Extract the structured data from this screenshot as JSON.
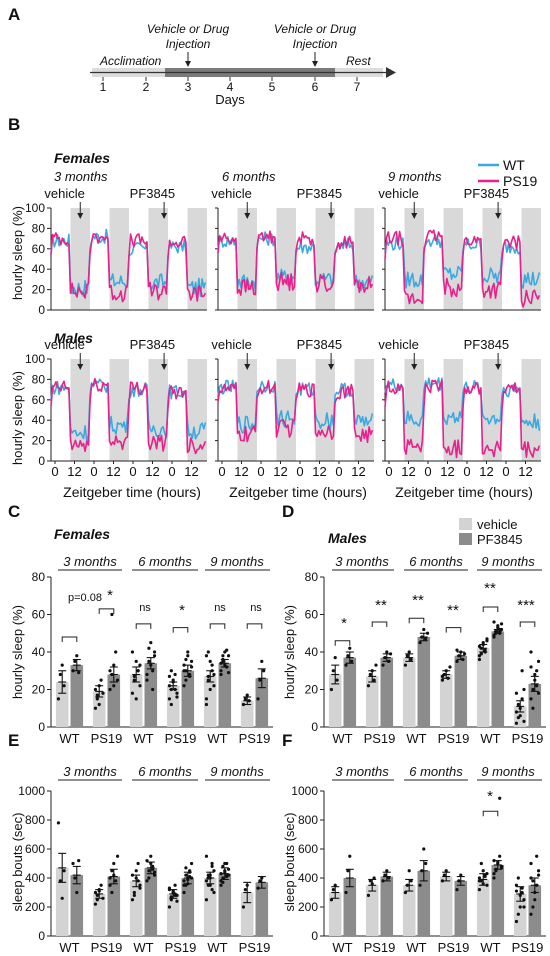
{
  "colors": {
    "wt": "#3aa9e0",
    "ps19": "#e8218c",
    "vehicle": "#d3d3d3",
    "pf3845": "#8c8c8c",
    "night": "#d9d9d9",
    "timeline": "#7a7a7a"
  },
  "panel_letters": [
    "A",
    "B",
    "C",
    "D",
    "E",
    "F"
  ],
  "panel_a": {
    "stages": [
      "Acclimation",
      "Rest"
    ],
    "injection_labels": [
      "Vehicle or Drug",
      "Injection",
      "Vehicle or Drug",
      "Injection"
    ],
    "day_ticks": [
      "1",
      "2",
      "3",
      "4",
      "5",
      "6",
      "7"
    ],
    "xlabel": "Days"
  },
  "panel_b": {
    "group_labels": [
      "Females",
      "Males"
    ],
    "age_labels": [
      "3 months",
      "6 months",
      "9 months"
    ],
    "treatment_labels": [
      "vehicle",
      "PF3845"
    ],
    "ylabel": "hourly sleep (%)",
    "xlabel": "Zeitgeber time (hours)",
    "legend": [
      "WT",
      "PS19"
    ],
    "x_ticks": [
      "0",
      "12",
      "0",
      "12",
      "0",
      "12",
      "0",
      "12"
    ]
  },
  "panel_c": {
    "title": "Females",
    "ages": [
      "3 months",
      "6 months",
      "9 months"
    ],
    "genotypes": [
      "WT",
      "PS19",
      "WT",
      "PS19",
      "WT",
      "PS19"
    ],
    "ylabel": "hourly sleep (%)",
    "sig": [
      "p=0.08",
      "*",
      "ns",
      "*",
      "ns",
      "ns"
    ]
  },
  "panel_d": {
    "title": "Males",
    "ages": [
      "3 months",
      "6 months",
      "9 months"
    ],
    "genotypes": [
      "WT",
      "PS19",
      "WT",
      "PS19",
      "WT",
      "PS19"
    ],
    "ylabel": "hourly sleep (%)",
    "sig": [
      "*",
      "**",
      "**",
      "**",
      "**",
      "***"
    ],
    "legend": [
      "vehicle",
      "PF3845"
    ]
  },
  "panel_e": {
    "ages": [
      "3 months",
      "6 months",
      "9 months"
    ],
    "genotypes": [
      "WT",
      "PS19",
      "WT",
      "PS19",
      "WT",
      "PS19"
    ],
    "ylabel": "sleep bouts (sec)"
  },
  "panel_f": {
    "ages": [
      "3 months",
      "6 months",
      "9 months"
    ],
    "genotypes": [
      "WT",
      "PS19",
      "WT",
      "PS19",
      "WT",
      "PS19"
    ],
    "ylabel": "sleep bouts (sec)",
    "sig": [
      "*"
    ]
  },
  "chart_data": [
    {
      "type": "line",
      "panel": "B",
      "group": "Females",
      "age": "3 months",
      "xlabel": "Zeitgeber time (hours)",
      "ylabel": "hourly sleep (%)",
      "ylim": [
        0,
        100
      ],
      "series": [
        {
          "name": "WT",
          "light_values": [
            68,
            72,
            60,
            62
          ],
          "dark_values": [
            22,
            28,
            27,
            22
          ]
        },
        {
          "name": "PS19",
          "light_values": [
            70,
            72,
            68,
            66
          ],
          "dark_values": [
            18,
            17,
            18,
            16
          ]
        }
      ]
    },
    {
      "type": "line",
      "panel": "B",
      "group": "Females",
      "age": "6 months",
      "xlabel": "Zeitgeber time (hours)",
      "ylabel": "hourly sleep (%)",
      "ylim": [
        0,
        100
      ],
      "series": [
        {
          "name": "WT",
          "light_values": [
            68,
            70,
            62,
            64
          ],
          "dark_values": [
            28,
            32,
            30,
            28
          ]
        },
        {
          "name": "PS19",
          "light_values": [
            70,
            72,
            70,
            66
          ],
          "dark_values": [
            22,
            28,
            26,
            24
          ]
        }
      ]
    },
    {
      "type": "line",
      "panel": "B",
      "group": "Females",
      "age": "9 months",
      "xlabel": "Zeitgeber time (hours)",
      "ylabel": "hourly sleep (%)",
      "ylim": [
        0,
        100
      ],
      "series": [
        {
          "name": "WT",
          "light_values": [
            65,
            68,
            64,
            62
          ],
          "dark_values": [
            30,
            35,
            33,
            30
          ]
        },
        {
          "name": "PS19",
          "light_values": [
            70,
            72,
            68,
            66
          ],
          "dark_values": [
            10,
            22,
            20,
            12
          ]
        }
      ]
    },
    {
      "type": "line",
      "panel": "B",
      "group": "Males",
      "age": "3 months",
      "xlabel": "Zeitgeber time (hours)",
      "ylabel": "hourly sleep (%)",
      "ylim": [
        0,
        100
      ],
      "series": [
        {
          "name": "WT",
          "light_values": [
            72,
            74,
            70,
            68
          ],
          "dark_values": [
            28,
            35,
            32,
            30
          ]
        },
        {
          "name": "PS19",
          "light_values": [
            72,
            74,
            72,
            68
          ],
          "dark_values": [
            16,
            20,
            18,
            16
          ]
        }
      ]
    },
    {
      "type": "line",
      "panel": "B",
      "group": "Males",
      "age": "6 months",
      "xlabel": "Zeitgeber time (hours)",
      "ylabel": "hourly sleep (%)",
      "ylim": [
        0,
        100
      ],
      "series": [
        {
          "name": "WT",
          "light_values": [
            72,
            74,
            70,
            70
          ],
          "dark_values": [
            36,
            42,
            40,
            38
          ]
        },
        {
          "name": "PS19",
          "light_values": [
            70,
            72,
            70,
            68
          ],
          "dark_values": [
            26,
            32,
            30,
            26
          ]
        }
      ]
    },
    {
      "type": "line",
      "panel": "B",
      "group": "Males",
      "age": "9 months",
      "xlabel": "Zeitgeber time (hours)",
      "ylabel": "hourly sleep (%)",
      "ylim": [
        0,
        100
      ],
      "series": [
        {
          "name": "WT",
          "light_values": [
            74,
            76,
            72,
            70
          ],
          "dark_values": [
            40,
            44,
            42,
            38
          ]
        },
        {
          "name": "PS19",
          "light_values": [
            72,
            74,
            72,
            70
          ],
          "dark_values": [
            14,
            12,
            12,
            10
          ]
        }
      ]
    },
    {
      "type": "bar",
      "panel": "C",
      "title": "Females",
      "ylabel": "hourly sleep (%)",
      "ylim": [
        0,
        80
      ],
      "categories": [
        "WT",
        "PS19",
        "WT",
        "PS19",
        "WT",
        "PS19"
      ],
      "series": [
        {
          "name": "vehicle",
          "values": [
            24,
            19,
            28,
            22,
            27,
            14
          ],
          "sem": [
            6,
            3,
            4,
            2,
            3,
            2
          ],
          "points": [
            [
              15,
              28,
              33,
              22
            ],
            [
              10,
              15,
              22,
              25,
              18,
              20,
              17,
              12
            ],
            [
              18,
              25,
              35,
              30,
              22,
              40,
              27,
              15,
              30,
              33
            ],
            [
              15,
              20,
              25,
              28,
              18,
              22,
              30,
              24,
              20,
              16,
              27,
              12
            ],
            [
              15,
              25,
              35,
              30,
              22,
              38,
              27,
              20,
              33,
              28,
              12,
              40
            ],
            [
              12,
              15,
              17,
              14
            ]
          ]
        },
        {
          "name": "PF3845",
          "values": [
            33,
            28,
            34,
            30,
            34,
            26
          ],
          "sem": [
            3,
            4,
            3,
            3,
            2,
            5
          ],
          "points": [
            [
              30,
              35,
              38,
              29
            ],
            [
              20,
              28,
              33,
              40,
              25,
              30,
              60,
              22
            ],
            [
              25,
              35,
              45,
              30,
              38,
              28,
              42,
              33,
              20,
              40
            ],
            [
              22,
              30,
              38,
              27,
              35,
              33,
              25,
              40,
              28,
              32,
              30,
              36
            ],
            [
              28,
              35,
              40,
              32,
              38,
              30,
              36,
              33,
              41,
              29,
              34,
              38
            ],
            [
              15,
              25,
              35,
              30
            ]
          ]
        }
      ]
    },
    {
      "type": "bar",
      "panel": "D",
      "title": "Males",
      "ylabel": "hourly sleep (%)",
      "ylim": [
        0,
        80
      ],
      "categories": [
        "WT",
        "PS19",
        "WT",
        "PS19",
        "WT",
        "PS19"
      ],
      "series": [
        {
          "name": "vehicle",
          "values": [
            28,
            27,
            37,
            28,
            42,
            11
          ],
          "sem": [
            5,
            3,
            2,
            2,
            2,
            3
          ],
          "points": [
            [
              20,
              30,
              37,
              25
            ],
            [
              22,
              28,
              30,
              25,
              33
            ],
            [
              33,
              38,
              40,
              36
            ],
            [
              25,
              28,
              30,
              26,
              32,
              27
            ],
            [
              38,
              42,
              45,
              40,
              47,
              43,
              39,
              44,
              41,
              46,
              36
            ],
            [
              2,
              5,
              10,
              15,
              20,
              8,
              12,
              6,
              30,
              3,
              18
            ]
          ]
        },
        {
          "name": "PF3845",
          "values": [
            37,
            37,
            48,
            38,
            51,
            23
          ],
          "sem": [
            3,
            2,
            2,
            2,
            1,
            4
          ],
          "points": [
            [
              33,
              38,
              42,
              35
            ],
            [
              33,
              37,
              40,
              35,
              39
            ],
            [
              45,
              48,
              52,
              47,
              50
            ],
            [
              35,
              38,
              40,
              36,
              39,
              41
            ],
            [
              48,
              50,
              53,
              52,
              55,
              49,
              51,
              54,
              50,
              52,
              56
            ],
            [
              15,
              20,
              25,
              30,
              35,
              40,
              10,
              28,
              22,
              18,
              32
            ]
          ]
        }
      ]
    },
    {
      "type": "bar",
      "panel": "E",
      "ylabel": "sleep bouts (sec)",
      "ylim": [
        0,
        1000
      ],
      "categories": [
        "WT",
        "PS19",
        "WT",
        "PS19",
        "WT",
        "PS19"
      ],
      "series": [
        {
          "name": "vehicle",
          "values": [
            470,
            290,
            380,
            290,
            400,
            300
          ],
          "sem": [
            100,
            30,
            40,
            30,
            40,
            70
          ],
          "points": [
            [
              780,
              380,
              260,
              450
            ],
            [
              220,
              280,
              320,
              350,
              260,
              300,
              250,
              310
            ],
            [
              250,
              300,
              400,
              500,
              350,
              420,
              280,
              450,
              380,
              330
            ],
            [
              200,
              250,
              300,
              350,
              280,
              320,
              260,
              310,
              290,
              240,
              330,
              270,
              300,
              280
            ],
            [
              250,
              350,
              400,
              500,
              450,
              380,
              420,
              350,
              480,
              300,
              550,
              400,
              420,
              320
            ],
            [
              200,
              320,
              350
            ]
          ]
        },
        {
          "name": "PF3845",
          "values": [
            420,
            410,
            470,
            400,
            430,
            370
          ],
          "sem": [
            60,
            50,
            40,
            40,
            40,
            40
          ],
          "points": [
            [
              500,
              400,
              300,
              520
            ],
            [
              350,
              450,
              500,
              380,
              550,
              400,
              300,
              420
            ],
            [
              380,
              450,
              500,
              480,
              420,
              520,
              400,
              550,
              460,
              440
            ],
            [
              300,
              350,
              400,
              450,
              500,
              380,
              420,
              360,
              440,
              400,
              350,
              470,
              390,
              410
            ],
            [
              350,
              400,
              450,
              500,
              420,
              380,
              480,
              440,
              410,
              460,
              430,
              370,
              500,
              420
            ],
            [
              330,
              380,
              400
            ]
          ]
        }
      ]
    },
    {
      "type": "bar",
      "panel": "F",
      "ylabel": "sleep bouts (sec)",
      "ylim": [
        0,
        1000
      ],
      "categories": [
        "WT",
        "PS19",
        "WT",
        "PS19",
        "WT",
        "PS19"
      ],
      "series": [
        {
          "name": "vehicle",
          "values": [
            300,
            350,
            350,
            410,
            390,
            290
          ],
          "sem": [
            40,
            40,
            40,
            30,
            40,
            50
          ],
          "points": [
            [
              250,
              320,
              350
            ],
            [
              280,
              380,
              360,
              400
            ],
            [
              300,
              350,
              450,
              380
            ],
            [
              380,
              420,
              450
            ],
            [
              320,
              380,
              450,
              420,
              350,
              400,
              500,
              360,
              410,
              430,
              380
            ],
            [
              100,
              150,
              200,
              300,
              250,
              350,
              400,
              280,
              330,
              200,
              310
            ]
          ]
        },
        {
          "name": "PF3845",
          "values": [
            400,
            410,
            450,
            380,
            490,
            350
          ],
          "sem": [
            60,
            30,
            70,
            30,
            30,
            50
          ],
          "points": [
            [
              300,
              450,
              550
            ],
            [
              380,
              420,
              450,
              400
            ],
            [
              350,
              450,
              600,
              500
            ],
            [
              320,
              380,
              420
            ],
            [
              400,
              450,
              500,
              550,
              480,
              520,
              460,
              510,
              950,
              470,
              430
            ],
            [
              150,
              200,
              250,
              350,
              450,
              500,
              380,
              300,
              550,
              420,
              400
            ]
          ]
        }
      ]
    }
  ]
}
